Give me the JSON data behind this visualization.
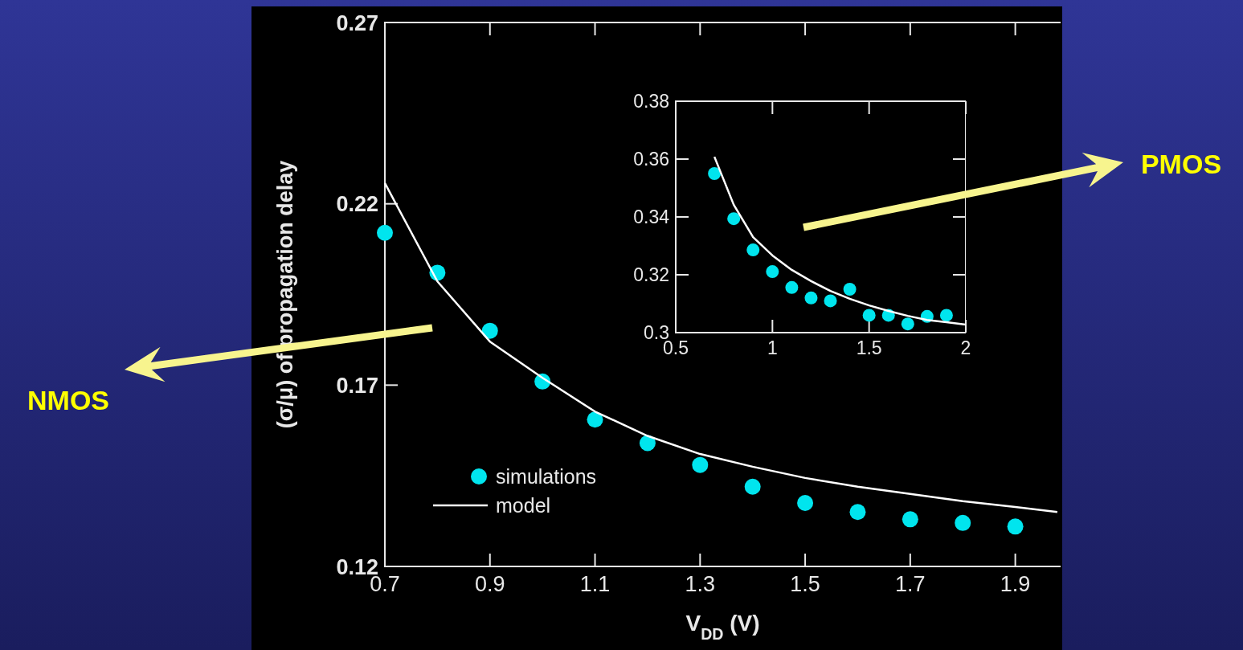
{
  "chart_data": [
    {
      "type": "scatter",
      "xlabel": "V$_{DD}$ (V)",
      "ylabel": "(σ/μ) of propagation delay",
      "x": [
        0.7,
        0.8,
        0.9,
        1.0,
        1.1,
        1.2,
        1.3,
        1.4,
        1.5,
        1.6,
        1.7,
        1.8,
        1.9
      ],
      "xlim": [
        0.7,
        2.0
      ],
      "ylim": [
        0.12,
        0.27
      ],
      "xticks": [
        0.7,
        0.9,
        1.1,
        1.3,
        1.5,
        1.7,
        1.9
      ],
      "yticks": [
        0.12,
        0.17,
        0.22,
        0.27
      ],
      "legend": "bottom left",
      "marker": "circle",
      "annotations": [
        "NMOS"
      ],
      "series": [
        {
          "name": "simulations",
          "color": "#00e5ee",
          "values": [
            0.212,
            0.201,
            0.185,
            0.171,
            0.1605,
            0.154,
            0.148,
            0.142,
            0.1375,
            0.135,
            0.133,
            0.132,
            0.131
          ]
        },
        {
          "name": "model",
          "type": "line",
          "marker": "none",
          "color": "#ffffff",
          "x": [
            0.7,
            0.8,
            0.9,
            1.0,
            1.1,
            1.2,
            1.3,
            1.4,
            1.5,
            1.6,
            1.7,
            1.8,
            1.9,
            1.98
          ],
          "values": [
            0.2257,
            0.1986,
            0.182,
            0.172,
            0.1627,
            0.156,
            0.151,
            0.1475,
            0.1444,
            0.142,
            0.14,
            0.138,
            0.1364,
            0.135
          ]
        }
      ]
    },
    {
      "type": "scatter",
      "x": [
        0.7,
        0.8,
        0.9,
        1.0,
        1.1,
        1.2,
        1.3,
        1.4,
        1.5,
        1.6,
        1.7,
        1.8,
        1.9
      ],
      "xlim": [
        0.5,
        2
      ],
      "ylim": [
        0.3,
        0.38
      ],
      "xticks": [
        0.5,
        1,
        1.5,
        2
      ],
      "yticks": [
        {
          "value": 0.3,
          "label": "0.3"
        },
        0.32,
        0.34,
        0.36,
        0.38
      ],
      "marker": "circle",
      "annotations": [
        "PMOS"
      ],
      "series": [
        {
          "color": "#00e5ee",
          "values": [
            0.355,
            0.3394,
            0.3286,
            0.3211,
            0.3156,
            0.312,
            0.311,
            0.315,
            0.306,
            0.306,
            0.303,
            0.3056,
            0.306
          ]
        },
        {
          "type": "line",
          "marker": "none",
          "color": "#ffffff",
          "x": [
            0.7,
            0.8,
            0.9,
            1.0,
            1.1,
            1.2,
            1.3,
            1.4,
            1.5,
            1.6,
            1.7,
            1.8,
            1.9,
            2.0
          ],
          "values": [
            0.3608,
            0.3442,
            0.333,
            0.3267,
            0.3217,
            0.3178,
            0.3144,
            0.3117,
            0.3094,
            0.3075,
            0.3058,
            0.3044,
            0.3036,
            0.3028
          ]
        }
      ]
    }
  ]
}
